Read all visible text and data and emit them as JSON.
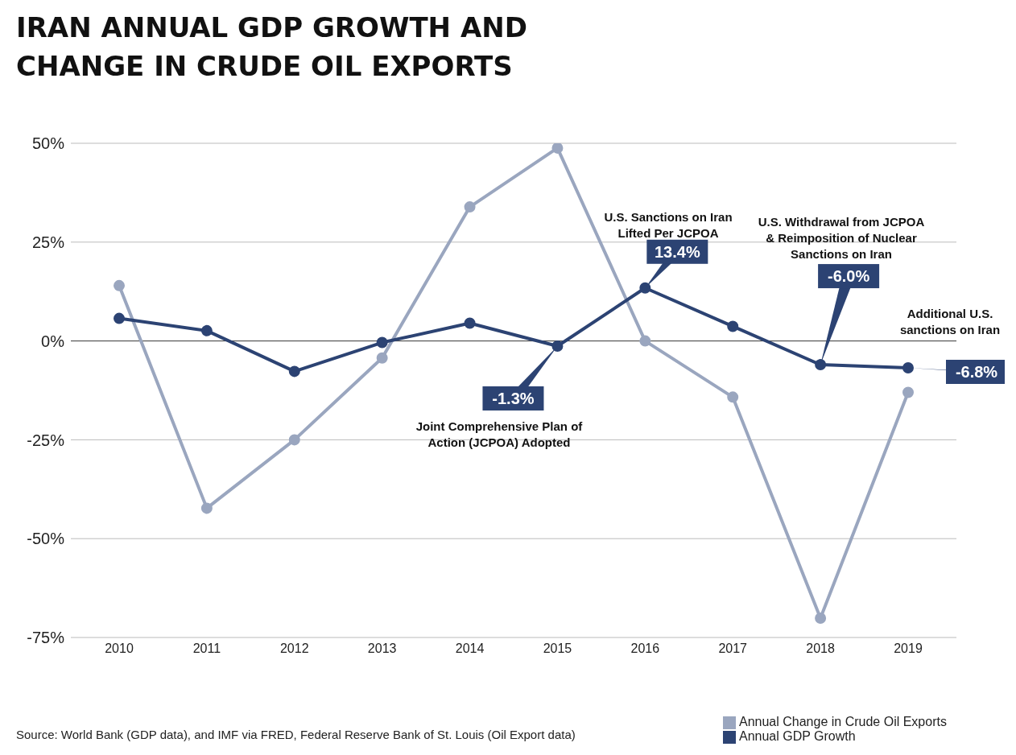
{
  "chart_data": {
    "type": "line",
    "title": "IRAN ANNUAL GDP GROWTH AND CHANGE IN CRUDE OIL EXPORTS",
    "categories": [
      "2010",
      "2011",
      "2012",
      "2013",
      "2014",
      "2015",
      "2016",
      "2017",
      "2018",
      "2019"
    ],
    "series": [
      {
        "name": "Annual GDP Growth",
        "color": "#2c4373",
        "values": [
          5.7,
          2.6,
          -7.7,
          -0.4,
          4.5,
          -1.3,
          13.4,
          3.7,
          -6.0,
          -6.8
        ],
        "value_labels": [
          null,
          null,
          null,
          null,
          null,
          "-1.3%",
          "13.4%",
          null,
          "-6.0%",
          "-6.8%"
        ]
      },
      {
        "name": "Annual Change in Crude Oil Exports",
        "color": "#9aa6bf",
        "values": [
          14.0,
          -42.3,
          -25.0,
          -4.3,
          33.9,
          48.8,
          0.0,
          -14.2,
          -70.1,
          -13.0
        ]
      }
    ],
    "ylim": [
      -75,
      50
    ],
    "yticks": [
      {
        "value": -75,
        "label": "-75%"
      },
      {
        "value": -50,
        "label": "-50%"
      },
      {
        "value": -25,
        "label": "-25%"
      },
      {
        "value": 0,
        "label": "0%"
      },
      {
        "value": 25,
        "label": "25%"
      },
      {
        "value": 50,
        "label": "50%"
      }
    ],
    "grid": "y",
    "legend": "bottom right",
    "marker": "circle",
    "line_style": "solid",
    "annotations": [
      "Joint Comprehensive Plan of Action (JCPOA) Adopted",
      "U.S. Sanctions on Iran Lifted Per JCPOA",
      "U.S. Withdrawal from JCPOA & Reimposition of Nuclear Sanctions on Iran",
      "Additional U.S. sanctions on Iran",
      "Source: World Bank (GDP data), and IMF via FRED, Federal Reserve Bank of St. Louis (Oil Export data)"
    ]
  }
}
